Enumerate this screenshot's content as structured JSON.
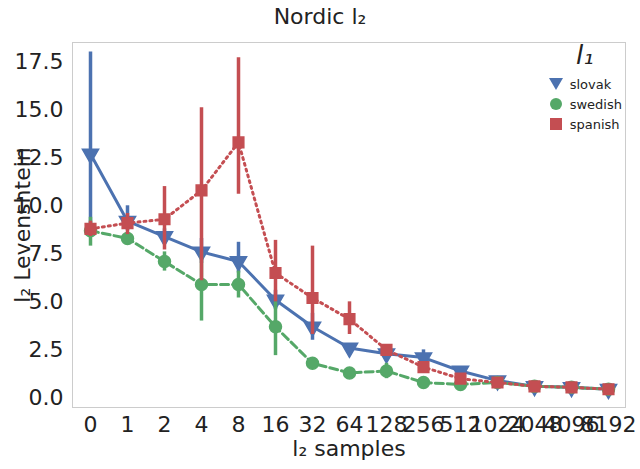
{
  "chart_data": {
    "type": "line",
    "title": "Nordic l₂",
    "x_label": "l₂ samples",
    "y_label": "l₂ Levenshtein",
    "legend_title": "l₁",
    "legend": "upper right",
    "grid": false,
    "categories": [
      "0",
      "1",
      "2",
      "4",
      "8",
      "16",
      "32",
      "64",
      "128",
      "256",
      "512",
      "1024",
      "2048",
      "4096",
      "8192"
    ],
    "ylim": [
      -0.5,
      18.5
    ],
    "yticks": [
      {
        "value": 0,
        "label": "0.0"
      },
      {
        "value": 2.5,
        "label": "2.5"
      },
      {
        "value": 5,
        "label": "5.0"
      },
      {
        "value": 7.5,
        "label": "7.5"
      },
      {
        "value": 10,
        "label": "10.0"
      },
      {
        "value": 12.5,
        "label": "12.5"
      },
      {
        "value": 15,
        "label": "15.0"
      },
      {
        "value": 17.5,
        "label": "17.5"
      }
    ],
    "series": [
      {
        "name": "slovak",
        "color": "#4c72b0",
        "marker": "triangle-down",
        "line_style": "solid",
        "values": [
          12.7,
          9.2,
          8.4,
          7.6,
          7.1,
          5.1,
          3.7,
          2.6,
          2.3,
          2.1,
          1.4,
          0.9,
          0.6,
          0.55,
          0.45
        ],
        "error_lower": [
          9.0,
          8.7,
          8.0,
          7.0,
          6.5,
          4.6,
          3.0,
          2.4,
          2.1,
          1.8,
          1.2,
          0.8,
          0.55,
          0.5,
          0.4
        ],
        "error_upper": [
          18.0,
          10.0,
          8.8,
          8.3,
          8.1,
          5.6,
          4.4,
          2.8,
          2.5,
          2.5,
          1.6,
          1.0,
          0.65,
          0.6,
          0.5
        ]
      },
      {
        "name": "swedish",
        "color": "#55a868",
        "marker": "circle",
        "line_style": "dashed",
        "values": [
          8.7,
          8.3,
          7.1,
          5.9,
          5.9,
          3.7,
          1.8,
          1.3,
          1.4,
          0.8,
          0.7,
          0.8,
          0.6,
          0.55,
          0.45
        ],
        "error_lower": [
          7.9,
          8.0,
          6.6,
          4.0,
          5.2,
          2.2,
          1.6,
          1.2,
          1.0,
          0.7,
          0.6,
          0.7,
          0.55,
          0.5,
          0.4
        ],
        "error_upper": [
          9.4,
          8.6,
          7.6,
          7.6,
          6.6,
          5.0,
          2.0,
          1.5,
          1.8,
          0.9,
          0.8,
          0.9,
          0.65,
          0.6,
          0.5
        ]
      },
      {
        "name": "spanish",
        "color": "#c44e52",
        "marker": "square",
        "line_style": "dotted",
        "values": [
          8.8,
          9.1,
          9.3,
          10.8,
          13.3,
          6.5,
          5.2,
          4.1,
          2.5,
          1.6,
          1.0,
          0.8,
          0.6,
          0.55,
          0.45
        ],
        "error_lower": [
          8.4,
          8.5,
          7.7,
          6.1,
          10.6,
          5.0,
          3.3,
          3.3,
          2.3,
          1.4,
          0.8,
          0.7,
          0.55,
          0.5,
          0.4
        ],
        "error_upper": [
          9.2,
          9.6,
          11.0,
          15.1,
          17.7,
          8.2,
          7.9,
          5.0,
          2.7,
          1.8,
          1.2,
          0.9,
          0.65,
          0.6,
          0.5
        ]
      }
    ]
  }
}
